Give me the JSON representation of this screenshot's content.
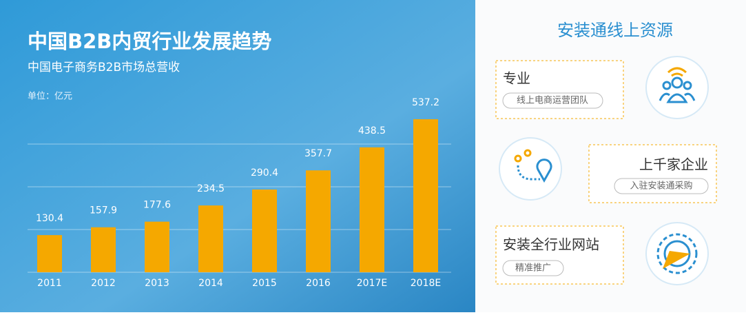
{
  "chart_data": {
    "type": "bar",
    "title": "中国B2B内贸行业发展趋势",
    "subtitle": "中国电子商务B2B市场总营收",
    "unit": "单位：亿元",
    "categories": [
      "2011",
      "2012",
      "2013",
      "2014",
      "2015",
      "2016",
      "2017E",
      "2018E"
    ],
    "values": [
      130.4,
      157.9,
      177.6,
      234.5,
      290.4,
      357.7,
      438.5,
      537.2
    ],
    "color": "#f5a800",
    "ylim": [
      0,
      600
    ],
    "yticks": [
      0,
      150,
      300,
      450
    ],
    "grid": true
  },
  "panel": {
    "title": "安装通线上资源",
    "items": [
      {
        "title": "专业",
        "tag": "线上电商运营团队"
      },
      {
        "title": "上千家企业",
        "tag": "入驻安装通采购"
      },
      {
        "title": "安装全行业网站",
        "tag": "精准推广"
      }
    ]
  }
}
